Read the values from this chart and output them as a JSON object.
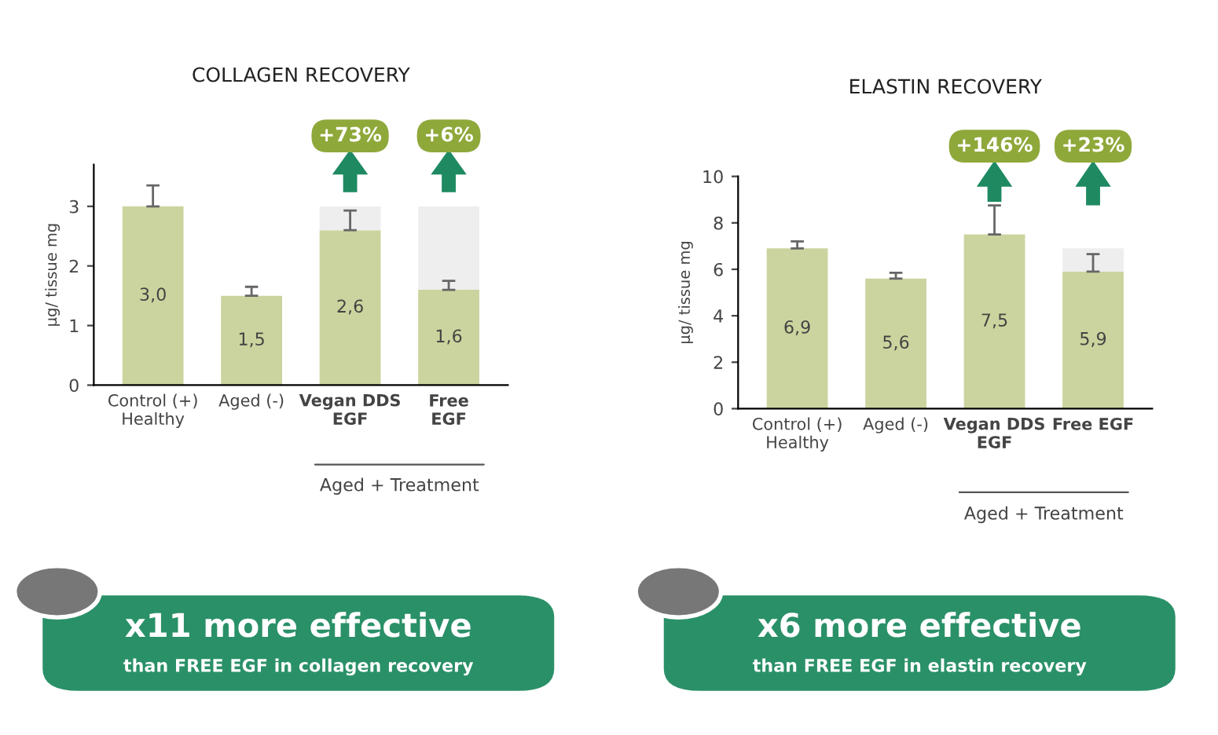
{
  "chart_data": [
    {
      "type": "bar",
      "title": "COLLAGEN RECOVERY",
      "ylabel": "µg/ tissue mg",
      "categories": [
        "Control (+)\nHealthy",
        "Aged (-)",
        "Vegan DDS\nEGF",
        "Free\nEGF"
      ],
      "stacked": true,
      "series": [
        {
          "color": "#cbd49e",
          "values": [
            3.0,
            1.5,
            2.6,
            1.6
          ],
          "value_labels": [
            "3,0",
            "1,5",
            "2,6",
            "1,6"
          ],
          "errors": [
            [
              3.0,
              3.35
            ],
            [
              1.5,
              1.65
            ],
            [
              2.6,
              2.93
            ],
            [
              1.6,
              1.75
            ]
          ]
        },
        {
          "color": "#eeeeee",
          "values": [
            null,
            null,
            0.4,
            1.4
          ]
        }
      ],
      "ylim": [
        0,
        3.7
      ],
      "yticks": [
        0,
        1,
        2,
        3
      ],
      "grid": false,
      "legend": false,
      "annotations": [
        "Aged + Treatment",
        "+73%",
        "+6%",
        "x11 more effective",
        "than FREE EGF in collagen recovery"
      ]
    },
    {
      "type": "bar",
      "title": "ELASTIN RECOVERY",
      "ylabel": "µg/ tissue mg",
      "categories": [
        "Control (+)\nHealthy",
        "Aged (-)",
        "Vegan DDS\nEGF",
        "Free EGF"
      ],
      "stacked": true,
      "series": [
        {
          "color": "#cbd49e",
          "values": [
            6.9,
            5.6,
            7.5,
            5.9
          ],
          "value_labels": [
            "6,9",
            "5,6",
            "7,5",
            "5,9"
          ],
          "errors": [
            [
              6.9,
              7.2
            ],
            [
              5.6,
              5.85
            ],
            [
              7.5,
              8.75
            ],
            [
              5.9,
              6.65
            ]
          ]
        },
        {
          "color": "#eeeeee",
          "values": [
            null,
            null,
            null,
            1.0
          ]
        }
      ],
      "ylim": [
        0,
        10
      ],
      "yticks": [
        0,
        2,
        4,
        6,
        8,
        10
      ],
      "grid": false,
      "legend": false,
      "annotations": [
        "Aged + Treatment",
        "+146%",
        "+23%",
        "x6 more effective",
        "than FREE EGF in elastin recovery"
      ]
    }
  ]
}
